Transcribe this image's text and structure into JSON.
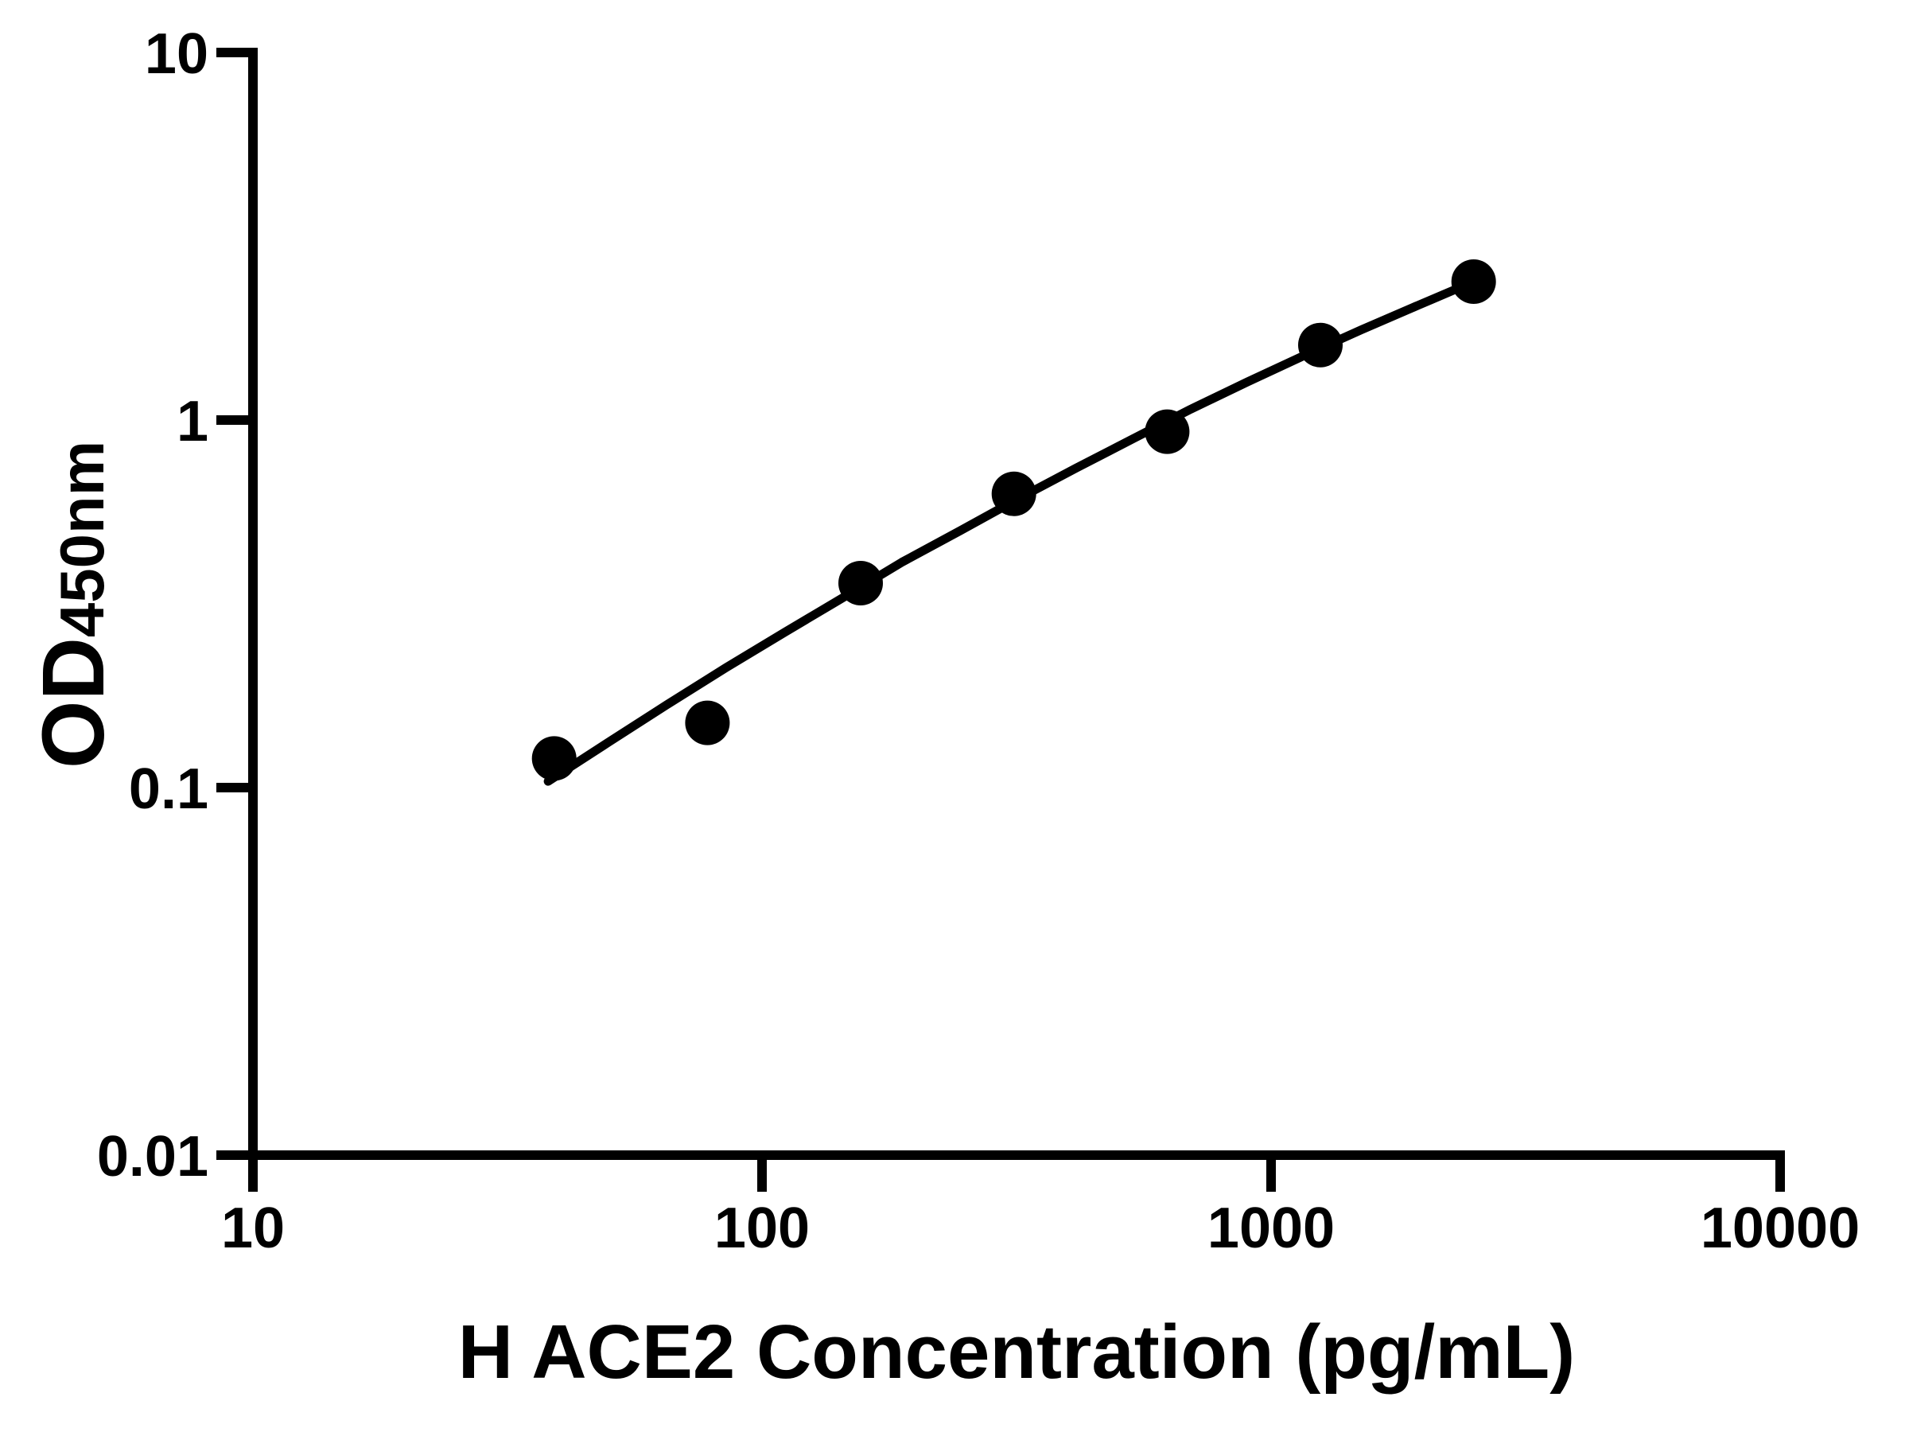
{
  "figure": {
    "background_color": "#ffffff",
    "ink_color": "#000000"
  },
  "chart_data": {
    "type": "scatter",
    "title": "",
    "xlabel": "H ACE2 Concentration (pg/mL)",
    "ylabel_main": "OD",
    "ylabel_sub": "450nm",
    "x_scale": "log10",
    "y_scale": "log10",
    "xlim": [
      10,
      10000
    ],
    "ylim": [
      0.01,
      10
    ],
    "x_ticks": [
      10,
      100,
      1000,
      10000
    ],
    "x_tick_labels": [
      "10",
      "100",
      "1000",
      "10000"
    ],
    "y_ticks": [
      10,
      1,
      0.1,
      0.01
    ],
    "y_tick_labels": [
      "10",
      "1",
      "0.1",
      "0.01"
    ],
    "grid": false,
    "legend": "none",
    "marker": "filled-circle",
    "series": [
      {
        "name": "standard-points",
        "kind": "scatter",
        "color": "#000000",
        "points": [
          {
            "x": 39.06,
            "y": 0.12
          },
          {
            "x": 78.13,
            "y": 0.15
          },
          {
            "x": 156.25,
            "y": 0.36
          },
          {
            "x": 312.5,
            "y": 0.63
          },
          {
            "x": 625,
            "y": 0.93
          },
          {
            "x": 1250,
            "y": 1.6
          },
          {
            "x": 2500,
            "y": 2.38
          }
        ]
      },
      {
        "name": "fitted-curve",
        "kind": "line",
        "color": "#000000",
        "points": [
          {
            "x": 38,
            "y": 0.104
          },
          {
            "x": 50,
            "y": 0.133
          },
          {
            "x": 65,
            "y": 0.168
          },
          {
            "x": 85,
            "y": 0.212
          },
          {
            "x": 111,
            "y": 0.265
          },
          {
            "x": 145,
            "y": 0.33
          },
          {
            "x": 188,
            "y": 0.41
          },
          {
            "x": 245,
            "y": 0.5
          },
          {
            "x": 318,
            "y": 0.61
          },
          {
            "x": 414,
            "y": 0.74
          },
          {
            "x": 536,
            "y": 0.89
          },
          {
            "x": 695,
            "y": 1.07
          },
          {
            "x": 899,
            "y": 1.27
          },
          {
            "x": 1164,
            "y": 1.5
          },
          {
            "x": 1503,
            "y": 1.76
          },
          {
            "x": 1941,
            "y": 2.05
          },
          {
            "x": 2500,
            "y": 2.38
          }
        ]
      }
    ]
  }
}
